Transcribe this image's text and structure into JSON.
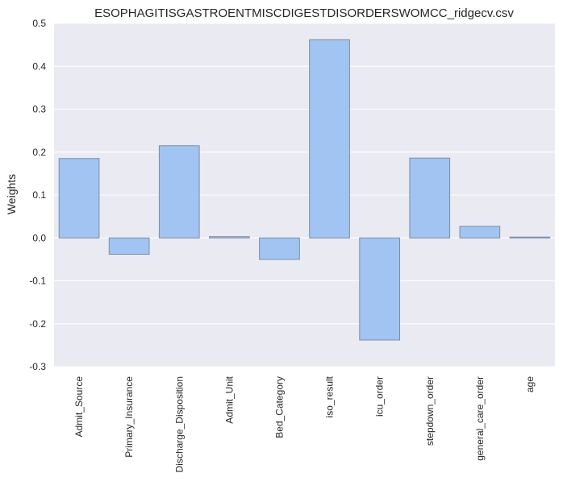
{
  "chart_data": {
    "type": "bar",
    "title": "ESOPHAGITISGASTROENTMISCDIGESTDISORDERSWOMCC_ridgecv.csv",
    "xlabel": "",
    "ylabel": "Weights",
    "categories": [
      "Admit_Source",
      "Primary_Insurance",
      "Discharge_Disposition",
      "Admit_Unit",
      "Bed_Category",
      "iso_result",
      "icu_order",
      "stepdown_order",
      "general_care_order",
      "age"
    ],
    "values": [
      0.185,
      -0.038,
      0.215,
      0.003,
      -0.05,
      0.462,
      -0.238,
      0.186,
      0.027,
      0.002
    ],
    "ylim": [
      -0.3,
      0.5
    ],
    "yticks": [
      "-0.3",
      "-0.2",
      "-0.1",
      "0.0",
      "0.1",
      "0.2",
      "0.3",
      "0.4",
      "0.5"
    ],
    "grid": true,
    "colors": {
      "bar_fill": "#a1c4f3",
      "bar_edge": "#7a8da6",
      "background": "#eaeaf2",
      "grid": "#ffffff"
    }
  }
}
